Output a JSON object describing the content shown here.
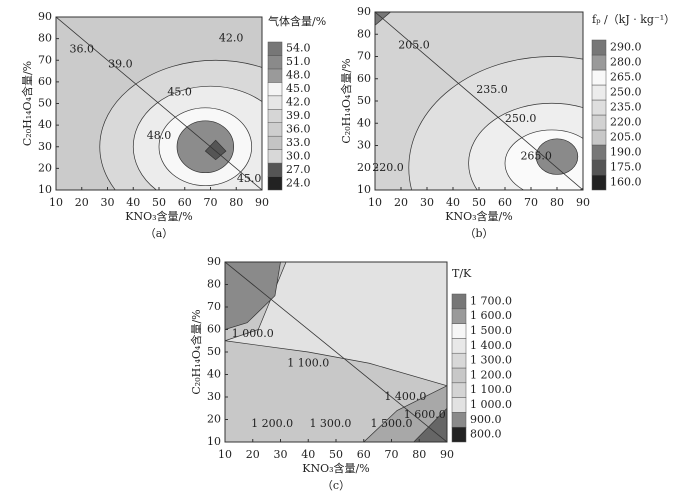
{
  "chart_data": [
    {
      "type": "contour",
      "caption": "（a）",
      "xlabel": "KNO₃含量/%",
      "ylabel": "C₂₀H₁₄O₄含量/%",
      "colorbar_title": "气体含量/%",
      "xlim": [
        10,
        90
      ],
      "ylim": [
        10,
        90
      ],
      "xticks": [
        10,
        20,
        30,
        40,
        50,
        60,
        70,
        80,
        90
      ],
      "yticks": [
        10,
        20,
        30,
        40,
        50,
        60,
        70,
        80,
        90
      ],
      "levels": [
        {
          "value": 24,
          "label": "24.0"
        },
        {
          "value": 27,
          "label": "27.0"
        },
        {
          "value": 30,
          "label": "30.0"
        },
        {
          "value": 33,
          "label": "33.0"
        },
        {
          "value": 36,
          "label": "36.0"
        },
        {
          "value": 39,
          "label": "39.0"
        },
        {
          "value": 42,
          "label": "42.0"
        },
        {
          "value": 45,
          "label": "45.0"
        },
        {
          "value": 48,
          "label": "48.0"
        },
        {
          "value": 51,
          "label": "51.0"
        },
        {
          "value": 54,
          "label": "54.0"
        }
      ],
      "colors": [
        "#222222",
        "#555555",
        "#d8d8d8",
        "#c4c4c4",
        "#cecece",
        "#d6d6d6",
        "#e6e6e6",
        "#f4f4f4",
        "#9a9a9a",
        "#8a8a8a",
        "#777777"
      ],
      "contour_labels": [
        "36.0",
        "39.0",
        "42.0",
        "45.0",
        "48.0",
        "45.0"
      ]
    },
    {
      "type": "contour",
      "caption": "（b）",
      "xlabel": "KNO₃含量/%",
      "ylabel": "C₂₀H₁₄O₄含量/%",
      "colorbar_title": "fₚ /（kJ · kg⁻¹）",
      "xlim": [
        10,
        90
      ],
      "ylim": [
        10,
        90
      ],
      "xticks": [
        10,
        20,
        30,
        40,
        50,
        60,
        70,
        80,
        90
      ],
      "yticks": [
        10,
        20,
        30,
        40,
        50,
        60,
        70,
        80,
        90
      ],
      "levels": [
        {
          "value": 160,
          "label": "160.0"
        },
        {
          "value": 175,
          "label": "175.0"
        },
        {
          "value": 190,
          "label": "190.0"
        },
        {
          "value": 205,
          "label": "205.0"
        },
        {
          "value": 220,
          "label": "220.0"
        },
        {
          "value": 235,
          "label": "235.0"
        },
        {
          "value": 250,
          "label": "250.0"
        },
        {
          "value": 265,
          "label": "265.0"
        },
        {
          "value": 280,
          "label": "280.0"
        },
        {
          "value": 290,
          "label": "290.0"
        }
      ],
      "colors": [
        "#222222",
        "#555555",
        "#777777",
        "#c8c8c8",
        "#d2d2d2",
        "#dedede",
        "#ececec",
        "#f8f8f8",
        "#9a9a9a",
        "#777777"
      ],
      "contour_labels": [
        "205.0",
        "235.0",
        "250.0",
        "265.0",
        "220.0"
      ]
    },
    {
      "type": "contour",
      "caption": "（c）",
      "xlabel": "KNO₃含量/%",
      "ylabel": "C₂₀H₁₄O₄含量/%",
      "colorbar_title": "T/K",
      "xlim": [
        10,
        90
      ],
      "ylim": [
        10,
        90
      ],
      "xticks": [
        10,
        20,
        30,
        40,
        50,
        60,
        70,
        80,
        90
      ],
      "yticks": [
        10,
        20,
        30,
        40,
        50,
        60,
        70,
        80,
        90
      ],
      "levels": [
        {
          "value": 800,
          "label": "800.0"
        },
        {
          "value": 900,
          "label": "900.0"
        },
        {
          "value": 1000,
          "label": "1 000.0"
        },
        {
          "value": 1100,
          "label": "1 100.0"
        },
        {
          "value": 1200,
          "label": "1 200.0"
        },
        {
          "value": 1300,
          "label": "1 300.0"
        },
        {
          "value": 1400,
          "label": "1 400.0"
        },
        {
          "value": 1500,
          "label": "1 500.0"
        },
        {
          "value": 1600,
          "label": "1 600.0"
        },
        {
          "value": 1700,
          "label": "1 700.0"
        }
      ],
      "colors": [
        "#222222",
        "#8a8a8a",
        "#e2e2e2",
        "#d4d4d4",
        "#c8c8c8",
        "#d8d8d8",
        "#e8e8e8",
        "#f6f6f6",
        "#9a9a9a",
        "#777777"
      ],
      "contour_labels": [
        "1 000.0",
        "1 100.0",
        "1 200.0",
        "1 300.0",
        "1 400.0",
        "1 500.0",
        "1 600.0"
      ]
    }
  ]
}
